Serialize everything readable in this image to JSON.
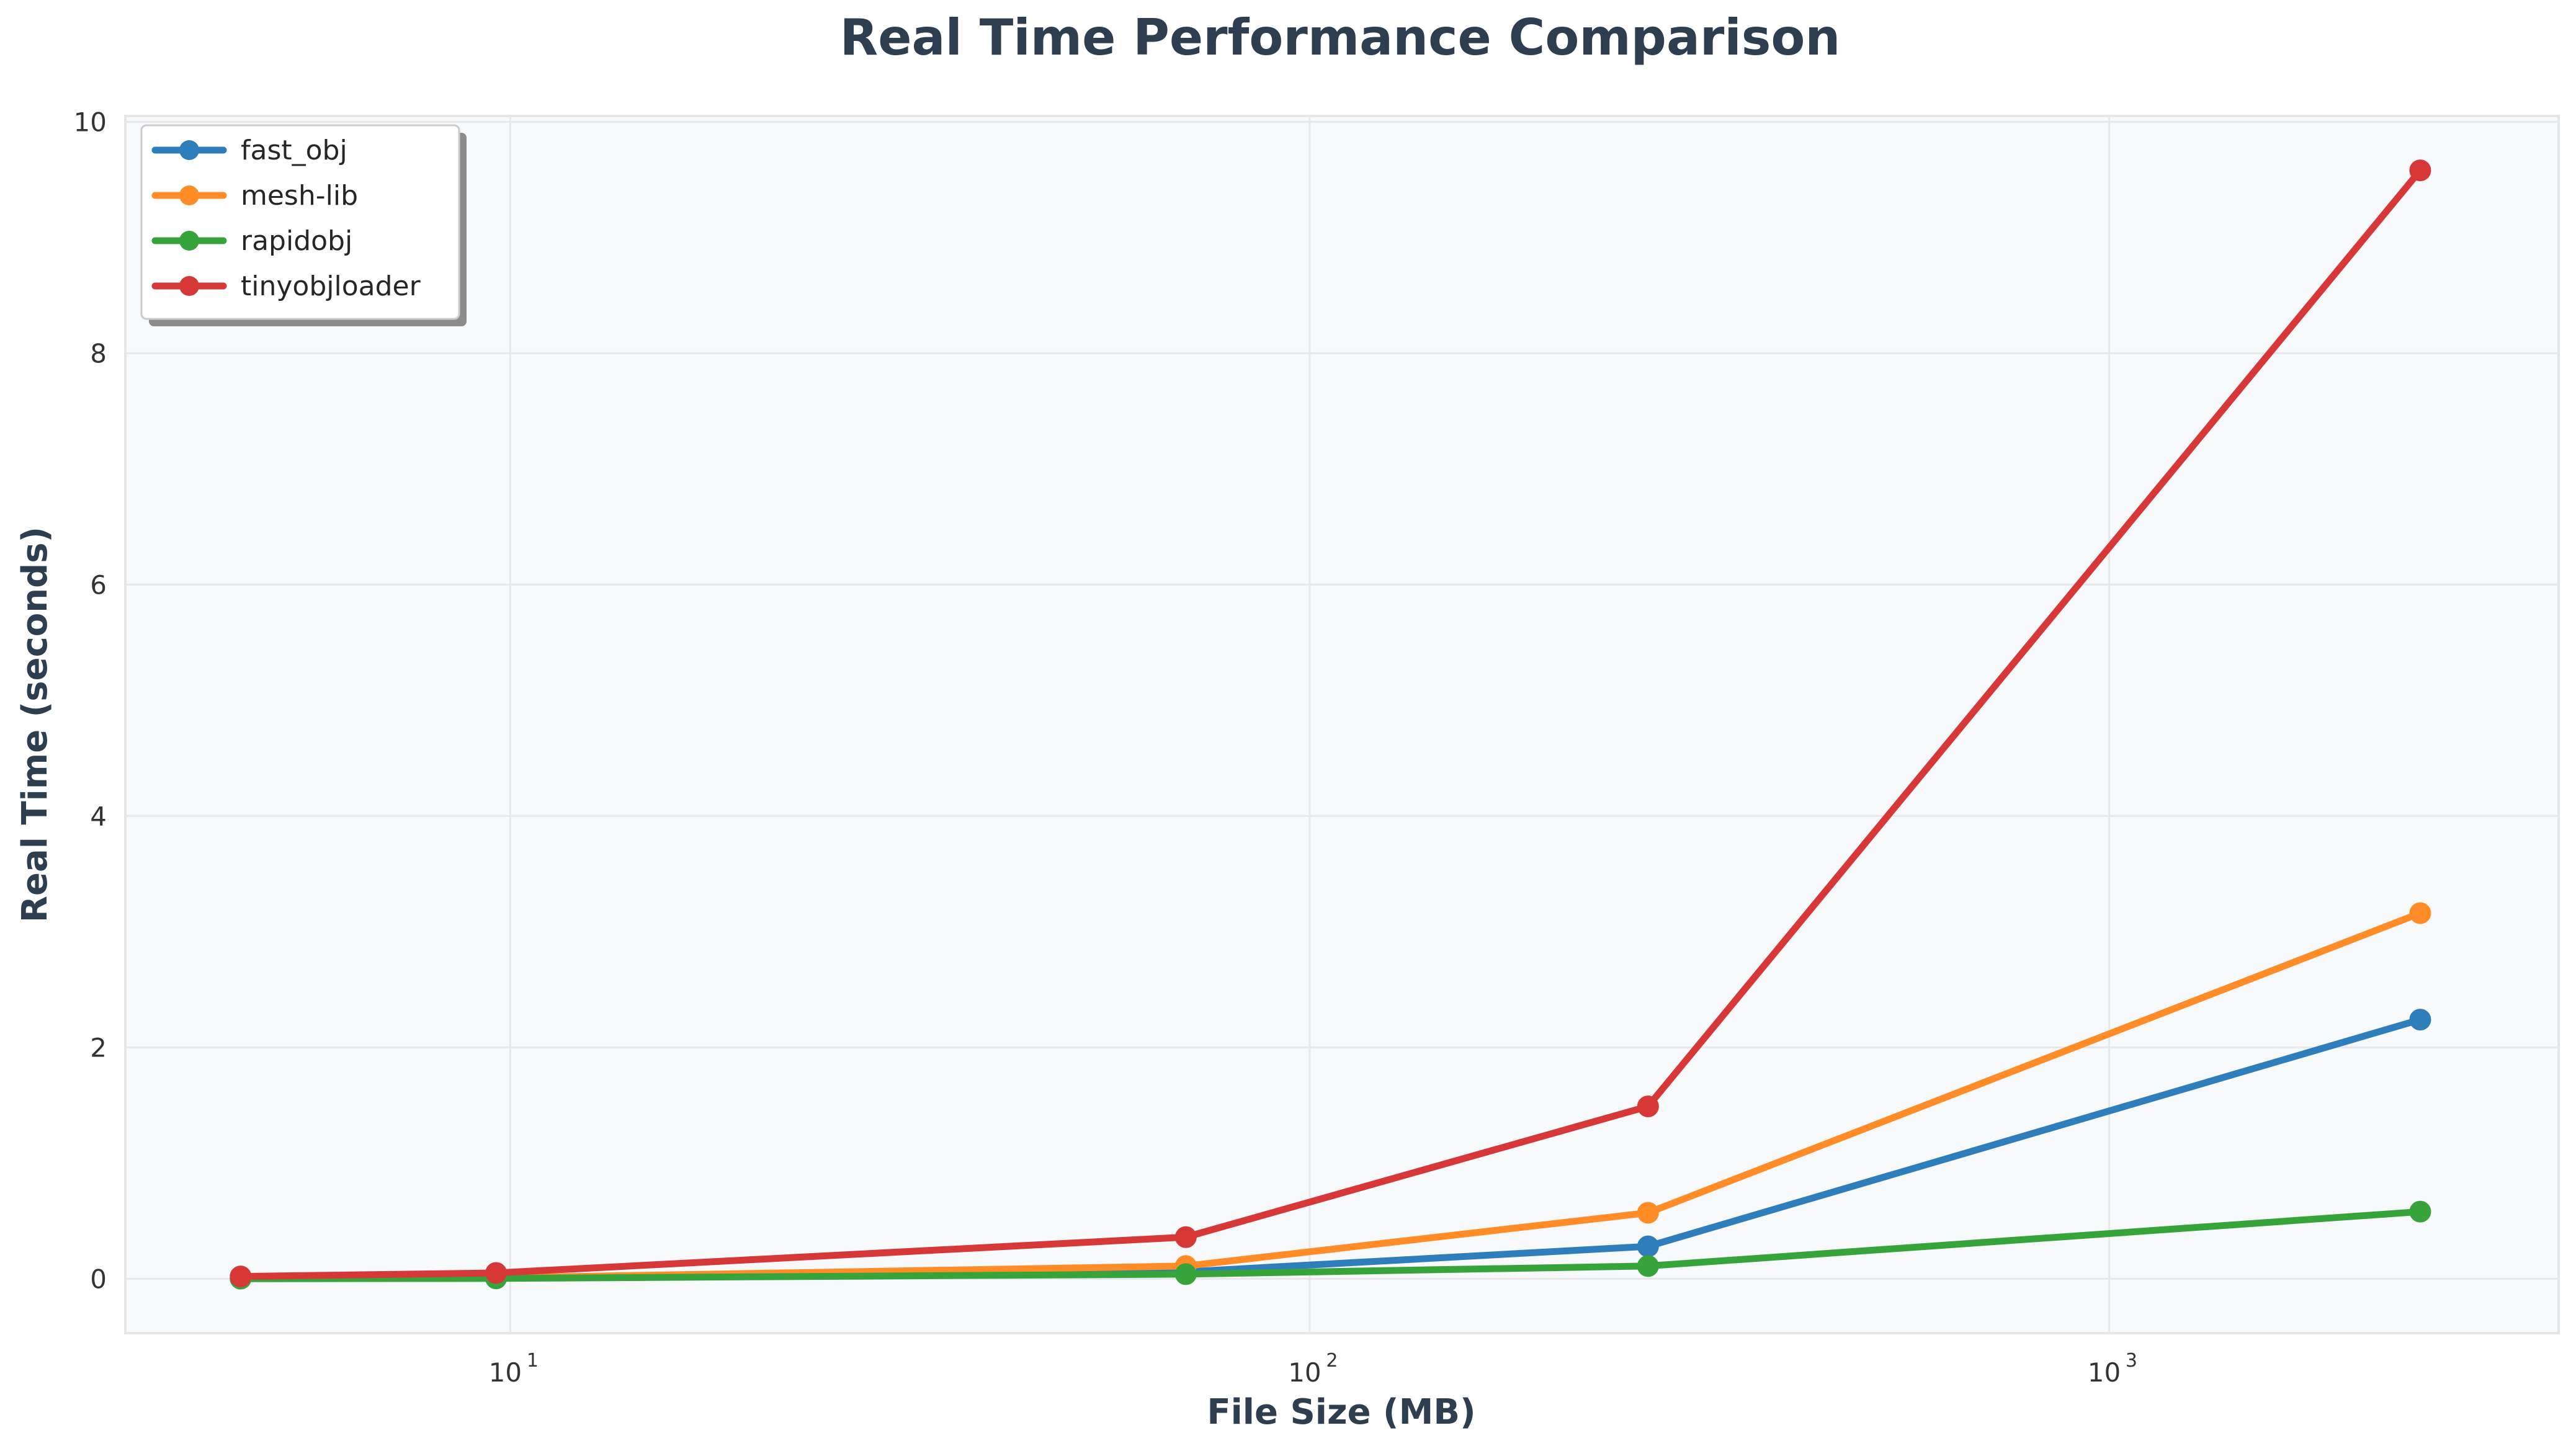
{
  "chart_data": {
    "type": "line",
    "title": "Real Time Performance Comparison",
    "xlabel": "File Size (MB)",
    "ylabel": "Real Time (seconds)",
    "xscale": "log",
    "xlim": [
      3.3,
      3650
    ],
    "ylim": [
      -0.47,
      10.05
    ],
    "x_ticks": [
      {
        "value": 10,
        "base": "10",
        "exp": "1"
      },
      {
        "value": 100,
        "base": "10",
        "exp": "2"
      },
      {
        "value": 1000,
        "base": "10",
        "exp": "3"
      }
    ],
    "y_ticks": [
      0,
      2,
      4,
      6,
      8,
      10
    ],
    "grid": true,
    "legend_position": "top-left",
    "x": [
      4.6,
      9.6,
      70,
      265,
      2450
    ],
    "series": [
      {
        "name": "fast_obj",
        "color": "#2e7ebc",
        "values": [
          0.002,
          0.005,
          0.06,
          0.28,
          2.24
        ]
      },
      {
        "name": "mesh-lib",
        "color": "#ff8c27",
        "values": [
          0.003,
          0.008,
          0.11,
          0.57,
          3.16
        ]
      },
      {
        "name": "rapidobj",
        "color": "#37a43b",
        "values": [
          0.001,
          0.003,
          0.04,
          0.11,
          0.58
        ]
      },
      {
        "name": "tinyobjloader",
        "color": "#d63838",
        "values": [
          0.02,
          0.05,
          0.36,
          1.49,
          9.58
        ]
      }
    ]
  }
}
